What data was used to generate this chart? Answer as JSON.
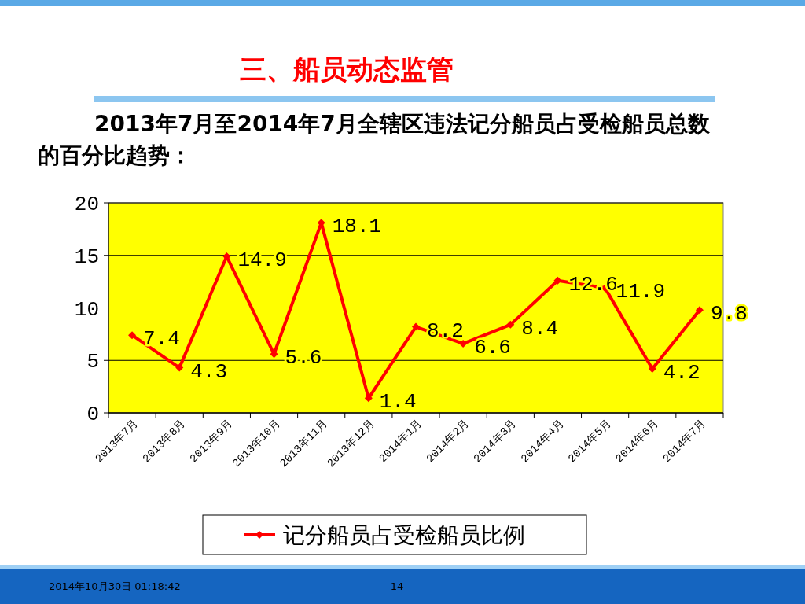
{
  "chart_data": {
    "type": "line",
    "title": "三、船员动态监管",
    "subtitle": "2013年7月至2014年7月全辖区违法记分船员占受检船员总数的百分比趋势：",
    "categories": [
      "2013年7月",
      "2013年8月",
      "2013年9月",
      "2013年10月",
      "2013年11月",
      "2013年12月",
      "2014年1月",
      "2014年2月",
      "2014年3月",
      "2014年4月",
      "2014年5月",
      "2014年6月",
      "2014年7月"
    ],
    "series": [
      {
        "name": "记分船员占受检船员比例",
        "color": "#ff0000",
        "values": [
          7.4,
          4.3,
          14.9,
          5.6,
          18.1,
          1.4,
          8.2,
          6.6,
          8.4,
          12.6,
          11.9,
          4.2,
          9.8
        ]
      }
    ],
    "ylim": [
      0,
      20
    ],
    "yticks": [
      0,
      5,
      10,
      15,
      20
    ],
    "grid": "y",
    "legend": "bottom",
    "marker": "diamond",
    "line_style": "solid",
    "data_labels": true,
    "annotations": [
      "2014年10月30日  01:18:42",
      "14"
    ]
  }
}
